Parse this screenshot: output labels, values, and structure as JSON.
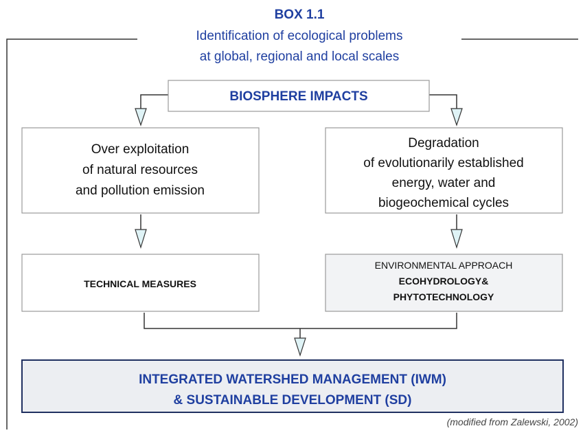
{
  "header": {
    "label": "BOX 1.1",
    "title_lines": [
      "Identification of ecological problems",
      "at global, regional and local scales"
    ]
  },
  "nodes": [
    {
      "lines": [
        "BIOSPHERE IMPACTS"
      ]
    },
    {
      "lines": [
        "Over exploitation",
        "of natural resources",
        "and pollution emission"
      ]
    },
    {
      "lines": [
        "Degradation",
        "of evolutionarily established",
        "energy, water and",
        "biogeochemical cycles"
      ]
    },
    {
      "lines": [
        "TECHNICAL MEASURES"
      ]
    },
    {
      "lines": [
        "ENVIRONMENTAL APPROACH",
        "ECOHYDROLOGY&",
        "PHYTOTECHNOLOGY"
      ]
    },
    {
      "lines": [
        "INTEGRATED WATERSHED MANAGEMENT (IWM)",
        "& SUSTAINABLE DEVELOPMENT (SD)"
      ]
    }
  ],
  "footer": {
    "source": "(modified  from  Zalewski, 2002)"
  }
}
